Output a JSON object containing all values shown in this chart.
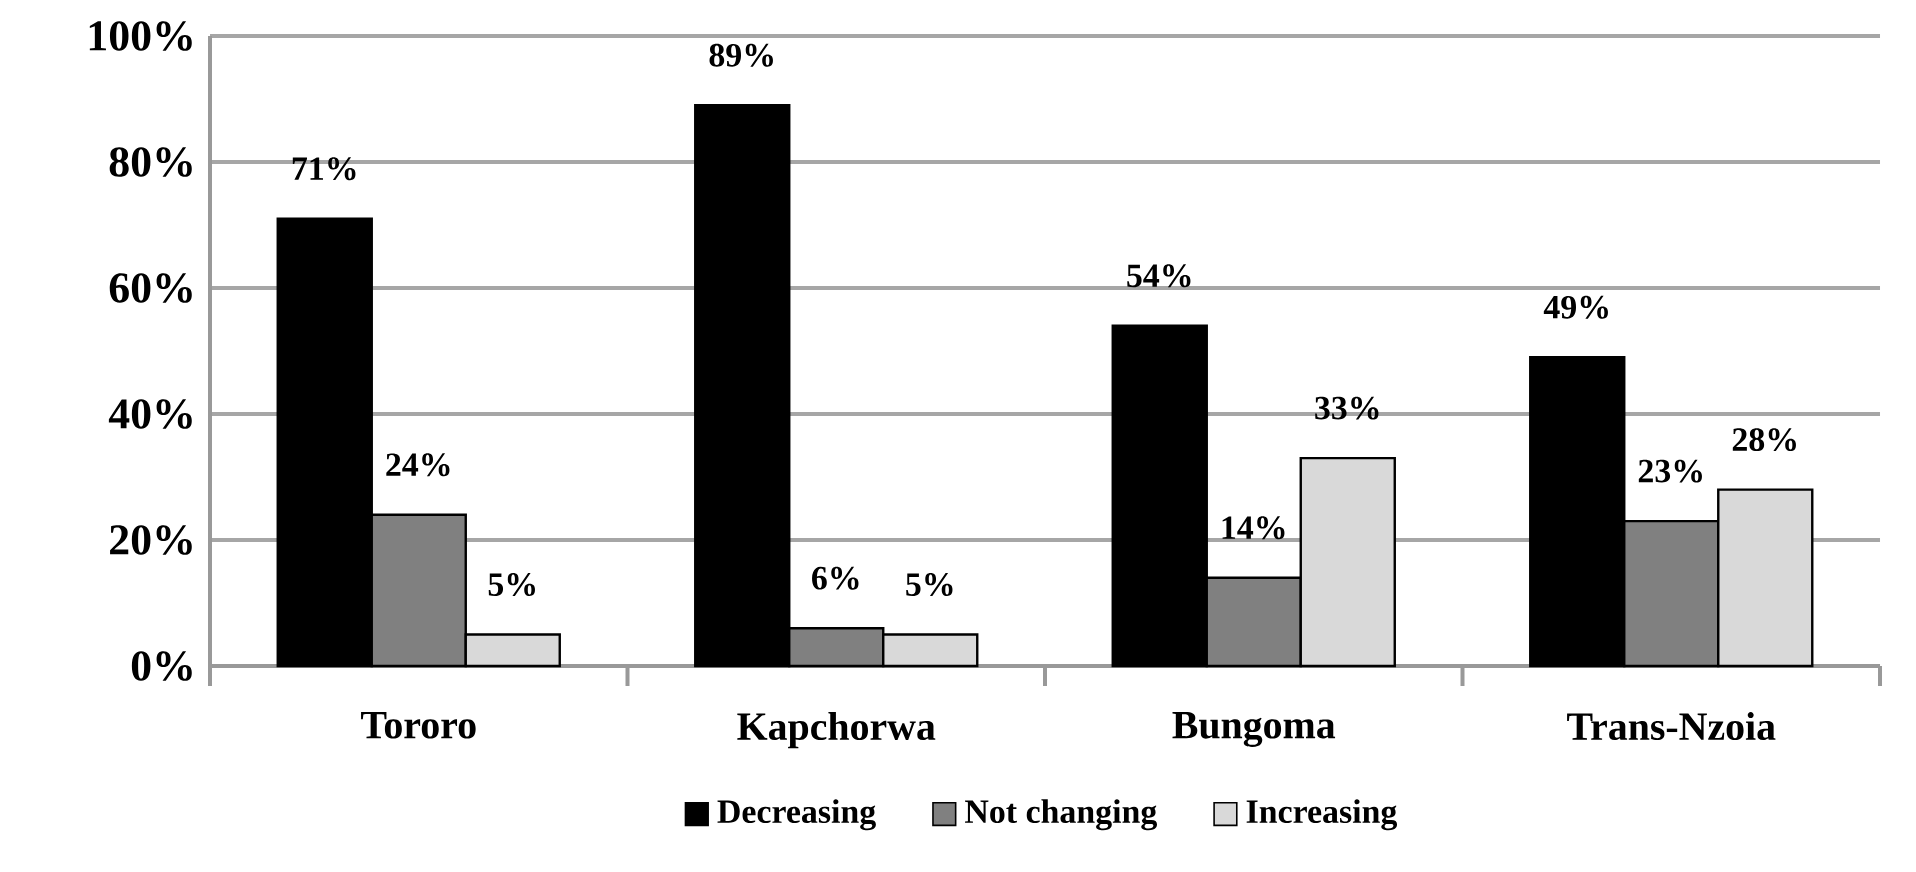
{
  "chart_data": {
    "type": "bar",
    "categories": [
      "Tororo",
      "Kapchorwa",
      "Bungoma",
      "Trans-Nzoia"
    ],
    "series": [
      {
        "name": "Decreasing",
        "color": "#000000",
        "values": [
          71,
          89,
          54,
          49
        ],
        "value_labels": [
          "71%",
          "89%",
          "54%",
          "49%"
        ]
      },
      {
        "name": "Not changing",
        "color": "#808080",
        "values": [
          24,
          6,
          14,
          23
        ],
        "value_labels": [
          "24%",
          "6%",
          "14%",
          "23%"
        ]
      },
      {
        "name": "Increasing",
        "color": "#d9d9d9",
        "values": [
          5,
          5,
          33,
          28
        ],
        "value_labels": [
          "5%",
          "5%",
          "33%",
          "28%"
        ]
      }
    ],
    "ylim": [
      0,
      100
    ],
    "yticks": [
      {
        "value": 0,
        "label": "0%"
      },
      {
        "value": 20,
        "label": "20%"
      },
      {
        "value": 40,
        "label": "40%"
      },
      {
        "value": 60,
        "label": "60%"
      },
      {
        "value": 80,
        "label": "80%"
      },
      {
        "value": 100,
        "label": "100%"
      }
    ],
    "grid": "y",
    "legend": "bottom"
  }
}
